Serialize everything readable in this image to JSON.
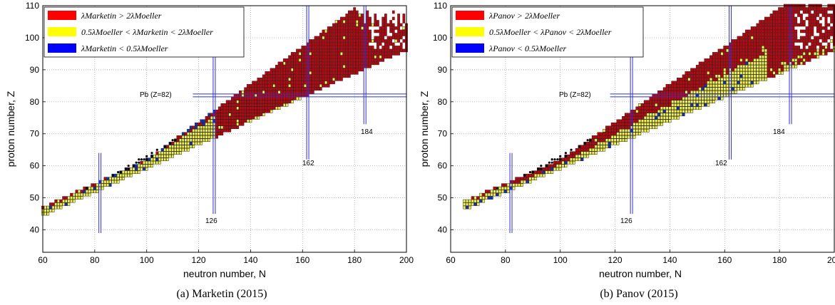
{
  "chart_data": [
    {
      "type": "heatmap",
      "caption": "(a) Marketin (2015)",
      "xlabel": "neutron number, N",
      "ylabel": "proton number, Z",
      "xlim": [
        60,
        200
      ],
      "ylim": [
        33,
        110
      ],
      "xticks": [
        "60",
        "80",
        "100",
        "120",
        "140",
        "160",
        "180",
        "200"
      ],
      "yticks": [
        "40",
        "50",
        "60",
        "70",
        "80",
        "90",
        "100",
        "110"
      ],
      "grid": true,
      "legend_position": "top-left",
      "legend": [
        {
          "label": "λMarketin > 2λMoeller",
          "color": "#ff0000"
        },
        {
          "label": "0.5λMoeller < λMarketin < 2λMoeller",
          "color": "#ffff00"
        },
        {
          "label": "λMarketin < 0.5λMoeller",
          "color": "#0000ff"
        }
      ],
      "annotations": {
        "pb": "Pb (Z=82)",
        "n126": "126",
        "n162": "162",
        "n184": "184"
      },
      "magic_numbers": {
        "pb_z": 82,
        "n": [
          82,
          126,
          162,
          184
        ]
      },
      "regions_description": {
        "dominant_high_N": "red",
        "low_N_near_stability": "yellow",
        "blue_boundary": "between yellow and red near N 100-130"
      }
    },
    {
      "type": "heatmap",
      "caption": "(b) Panov (2015)",
      "xlabel": "neutron number, N",
      "ylabel": "proton number, Z",
      "xlim": [
        60,
        200
      ],
      "ylim": [
        33,
        110
      ],
      "xticks": [
        "60",
        "80",
        "100",
        "120",
        "140",
        "160",
        "180",
        "200"
      ],
      "yticks": [
        "40",
        "50",
        "60",
        "70",
        "80",
        "90",
        "100",
        "110"
      ],
      "grid": true,
      "legend_position": "top-left",
      "legend": [
        {
          "label": "λPanov > 2λMoeller",
          "color": "#ff0000"
        },
        {
          "label": "0.5λMoeller < λPanov < 2λMoeller",
          "color": "#ffff00"
        },
        {
          "label": "λPanov < 0.5λMoeller",
          "color": "#0000ff"
        }
      ],
      "annotations": {
        "pb": "Pb (Z=82)",
        "n126": "126",
        "n162": "162",
        "n184": "184"
      },
      "magic_numbers": {
        "pb_z": 82,
        "n": [
          82,
          126,
          162,
          184
        ]
      }
    }
  ],
  "colors": {
    "red": "#c8000a",
    "yellow": "#f0f050",
    "blue": "#1030c8",
    "stable": "#000000",
    "magic": "#3030d0"
  }
}
